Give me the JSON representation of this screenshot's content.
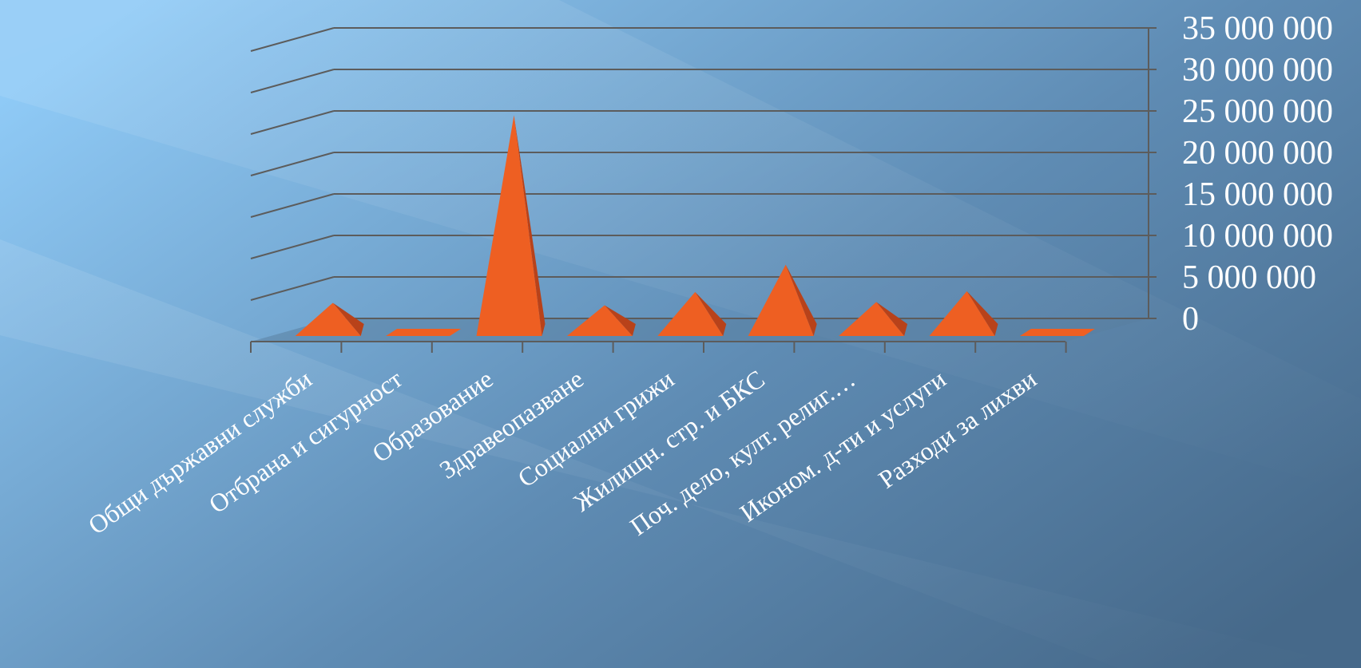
{
  "chart_data": {
    "type": "bar",
    "bar_shape": "pyramid-3d",
    "categories": [
      "Общи държавни служби",
      "Отбрана и сигурност",
      "Образование",
      "Здравеопазване",
      "Социални грижи",
      "Жилищн. стр. и БКС",
      "Поч. дело, култ. религ.…",
      "Иконом. д-ти и услуги",
      "Разходи за лихви"
    ],
    "values": [
      3900000,
      150000,
      26500000,
      3600000,
      5200000,
      8500000,
      4000000,
      5300000,
      150000
    ],
    "ylim": [
      0,
      35000000
    ],
    "yticks": [
      "0",
      "5 000 000",
      "10 000 000",
      "15 000 000",
      "20 000 000",
      "25 000 000",
      "30 000 000",
      "35 000 000"
    ],
    "y_axis_position": "right",
    "grid": true,
    "legend": "none",
    "colors": {
      "bar_front": "#ee5f22",
      "bar_side": "#b8421a",
      "grid": "#5c5c5c",
      "floor": "#5a7fa0",
      "text": "#ffffff",
      "bg_light": "#8fcaf6",
      "bg_dark": "#46698a"
    }
  }
}
